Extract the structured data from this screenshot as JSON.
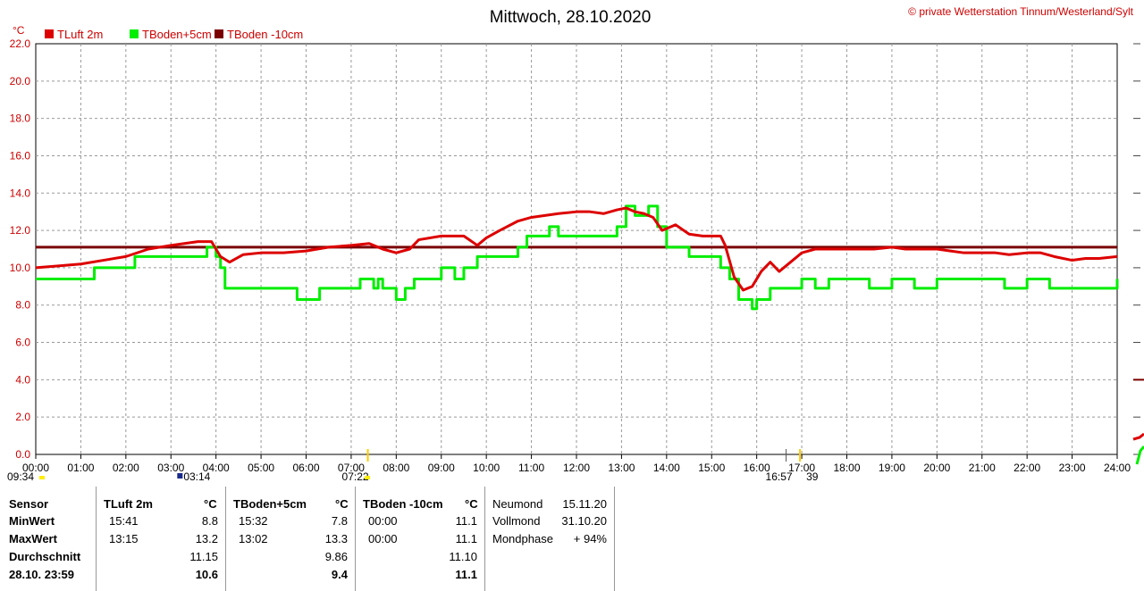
{
  "title": "Mittwoch, 28.10.2020",
  "copyright": "© private Wetterstation Tinnum/Westerland/Sylt",
  "unit_label": "°C",
  "legend": [
    {
      "label": "TLuft 2m",
      "color": "#dd0000"
    },
    {
      "label": "TBoden+5cm",
      "color": "#00ee00"
    },
    {
      "label": "TBoden -10cm",
      "color": "#7a0000"
    }
  ],
  "markers": [
    {
      "label": "09:34",
      "hour": 0
    },
    {
      "label": "03:14",
      "hour": 3.2
    },
    {
      "label": "07:22",
      "hour": 7.37
    },
    {
      "label": "16:57",
      "hour": 16.95
    },
    {
      "label": "39",
      "hour": 17.0
    }
  ],
  "chart_data": {
    "type": "line",
    "xlim": [
      0,
      24
    ],
    "ylim": [
      0,
      22
    ],
    "x_ticks": [
      "00:00",
      "01:00",
      "02:00",
      "03:00",
      "04:00",
      "05:00",
      "06:00",
      "07:00",
      "08:00",
      "09:00",
      "10:00",
      "11:00",
      "12:00",
      "13:00",
      "14:00",
      "15:00",
      "16:00",
      "17:00",
      "18:00",
      "19:00",
      "20:00",
      "21:00",
      "22:00",
      "23:00",
      "24:00"
    ],
    "y_ticks": [
      "0.0",
      "2.0",
      "4.0",
      "6.0",
      "8.0",
      "10.0",
      "12.0",
      "14.0",
      "16.0",
      "18.0",
      "20.0",
      "22.0"
    ],
    "grid": true,
    "series": [
      {
        "name": "TLuft 2m",
        "color": "#dd0000",
        "x": [
          0,
          0.5,
          1,
          1.5,
          2,
          2.5,
          3,
          3.3,
          3.6,
          3.9,
          4.1,
          4.3,
          4.6,
          5,
          5.5,
          6,
          6.5,
          7,
          7.4,
          7.7,
          8,
          8.3,
          8.5,
          9,
          9.5,
          9.8,
          10,
          10.3,
          10.7,
          11,
          11.3,
          11.6,
          12,
          12.3,
          12.6,
          12.9,
          13.1,
          13.3,
          13.5,
          13.7,
          13.9,
          14.2,
          14.5,
          14.8,
          15.2,
          15.3,
          15.5,
          15.7,
          15.9,
          16.1,
          16.3,
          16.5,
          16.8,
          17,
          17.3,
          17.6,
          18,
          18.3,
          18.6,
          19,
          19.3,
          19.6,
          20,
          20.3,
          20.6,
          21,
          21.3,
          21.6,
          22,
          22.3,
          22.6,
          23,
          23.3,
          23.6,
          24
        ],
        "values": [
          10.0,
          10.1,
          10.2,
          10.4,
          10.6,
          11.0,
          11.2,
          11.3,
          11.4,
          11.4,
          10.6,
          10.3,
          10.7,
          10.8,
          10.8,
          10.9,
          11.1,
          11.2,
          11.3,
          11.0,
          10.8,
          11.0,
          11.5,
          11.7,
          11.7,
          11.2,
          11.6,
          12.0,
          12.5,
          12.7,
          12.8,
          12.9,
          13.0,
          13.0,
          12.9,
          13.1,
          13.2,
          13.0,
          12.9,
          12.7,
          12.0,
          12.3,
          11.8,
          11.7,
          11.7,
          11.2,
          9.5,
          8.8,
          9.0,
          9.8,
          10.3,
          9.8,
          10.4,
          10.8,
          11.0,
          11.0,
          11.0,
          11.0,
          11.0,
          11.1,
          11.0,
          11.0,
          11.0,
          10.9,
          10.8,
          10.8,
          10.8,
          10.7,
          10.8,
          10.8,
          10.6,
          10.4,
          10.5,
          10.5,
          10.6
        ]
      },
      {
        "name": "TBoden+5cm",
        "color": "#00ee00",
        "x": [
          0,
          1.2,
          1.3,
          2,
          2.2,
          3,
          3.6,
          3.8,
          4,
          4.1,
          4.2,
          5,
          5.2,
          5.8,
          6.3,
          6.8,
          7,
          7.2,
          7.5,
          7.6,
          7.7,
          8,
          8.2,
          8.4,
          8.6,
          8.8,
          9,
          9.3,
          9.5,
          9.8,
          10,
          10.3,
          10.5,
          10.7,
          10.9,
          11,
          11.2,
          11.4,
          11.6,
          11.8,
          12,
          12.3,
          12.6,
          12.9,
          13,
          13.1,
          13.3,
          13.5,
          13.6,
          13.8,
          14,
          14.5,
          15,
          15.2,
          15.4,
          15.6,
          15.9,
          16,
          16.3,
          16.5,
          17,
          17.3,
          17.6,
          18,
          18.5,
          19,
          19.5,
          20,
          20.5,
          21,
          21.5,
          22,
          22.5,
          23,
          23.5,
          24
        ],
        "values": [
          9.4,
          9.4,
          10.0,
          10.0,
          10.6,
          10.6,
          10.6,
          11.1,
          10.6,
          10.0,
          8.9,
          8.9,
          8.9,
          8.3,
          8.9,
          8.9,
          8.9,
          9.4,
          8.9,
          9.4,
          8.9,
          8.3,
          8.9,
          9.4,
          9.4,
          9.4,
          10.0,
          9.4,
          10.0,
          10.6,
          10.6,
          10.6,
          10.6,
          11.1,
          11.7,
          11.7,
          11.7,
          12.2,
          11.7,
          11.7,
          11.7,
          11.7,
          11.7,
          12.2,
          12.2,
          13.3,
          12.8,
          12.8,
          13.3,
          12.2,
          11.1,
          10.6,
          10.6,
          10.0,
          9.4,
          8.3,
          7.8,
          8.3,
          8.9,
          8.9,
          9.4,
          8.9,
          9.4,
          9.4,
          8.9,
          9.4,
          8.9,
          9.4,
          9.4,
          9.4,
          8.9,
          9.4,
          8.9,
          8.9,
          8.9,
          9.4
        ]
      },
      {
        "name": "TBoden -10cm",
        "color": "#7a0000",
        "x": [
          0,
          24
        ],
        "values": [
          11.1,
          11.1
        ]
      }
    ]
  },
  "stats": {
    "sensor": {
      "header": "Sensor",
      "rows": [
        "MinWert",
        "MaxWert",
        "Durchschnitt",
        "28.10. 23:59"
      ]
    },
    "columns": [
      {
        "header": "TLuft 2m",
        "unit": "°C",
        "min_time": "15:41",
        "min_val": "8.8",
        "max_time": "13:15",
        "max_val": "13.2",
        "avg": "11.15",
        "last": "10.6"
      },
      {
        "header": "TBoden+5cm",
        "unit": "°C",
        "min_time": "15:32",
        "min_val": "7.8",
        "max_time": "13:02",
        "max_val": "13.3",
        "avg": "9.86",
        "last": "9.4"
      },
      {
        "header": "TBoden -10cm",
        "unit": "°C",
        "min_time": "00:00",
        "min_val": "11.1",
        "max_time": "00:00",
        "max_val": "11.1",
        "avg": "11.10",
        "last": "11.1"
      }
    ],
    "moon": {
      "rows": [
        {
          "label": "Neumond",
          "value": "15.11.20"
        },
        {
          "label": "Vollmond",
          "value": "31.10.20"
        },
        {
          "label": "Mondphase",
          "value": "+ 94%"
        }
      ]
    }
  }
}
